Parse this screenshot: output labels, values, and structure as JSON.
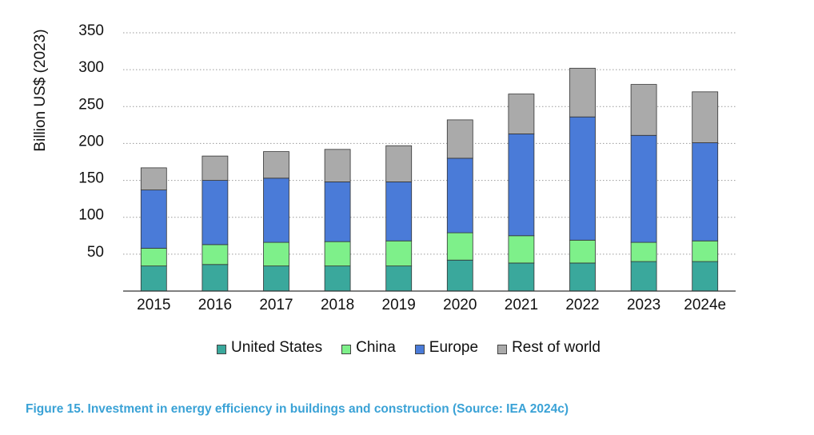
{
  "chart_data": {
    "type": "bar",
    "stacked": true,
    "ylabel": "Billion US$ (2023)",
    "xlabel": "",
    "ylim": [
      0,
      350
    ],
    "yticks": [
      50,
      100,
      150,
      200,
      250,
      300,
      350
    ],
    "grid": true,
    "legend_position": "bottom",
    "categories": [
      "2015",
      "2016",
      "2017",
      "2018",
      "2019",
      "2020",
      "2021",
      "2022",
      "2023",
      "2024e"
    ],
    "series": [
      {
        "name": "United States",
        "color": "#3aa89c",
        "values": [
          34,
          36,
          34,
          34,
          34,
          42,
          38,
          38,
          40,
          40
        ]
      },
      {
        "name": "China",
        "color": "#7ef08a",
        "values": [
          24,
          27,
          32,
          33,
          34,
          37,
          37,
          31,
          26,
          28
        ]
      },
      {
        "name": "Europe",
        "color": "#4a7bd8",
        "values": [
          79,
          87,
          87,
          81,
          80,
          101,
          138,
          167,
          145,
          133
        ]
      },
      {
        "name": "Rest of world",
        "color": "#aaaaaa",
        "values": [
          30,
          33,
          36,
          44,
          49,
          52,
          54,
          66,
          69,
          69
        ]
      }
    ]
  },
  "caption": "Figure 15. Investment in energy efficiency in buildings and construction (Source: IEA 2024c)"
}
